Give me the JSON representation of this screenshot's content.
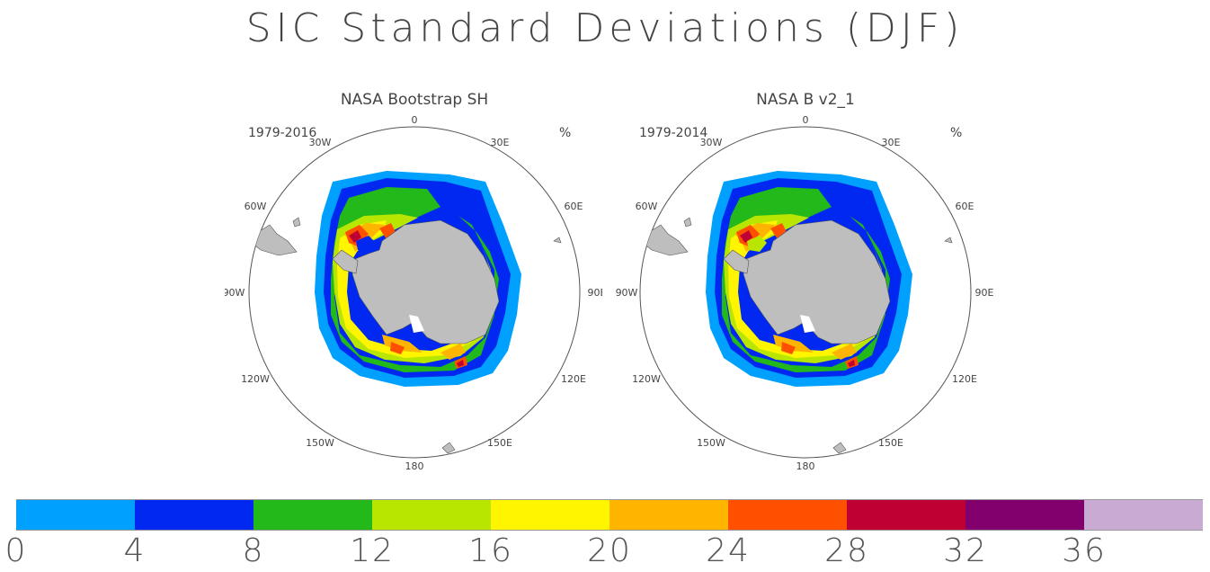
{
  "title": "SIC Standard Deviations (DJF)",
  "colors": {
    "land": "#bebebe",
    "coast_outline": "#555555",
    "ocean": "#ffffff",
    "scale": [
      "#00a0ff",
      "#0028f0",
      "#23b91b",
      "#b9e600",
      "#fff500",
      "#ffb400",
      "#ff5000",
      "#be0032",
      "#82006e",
      "#c8aad2"
    ]
  },
  "unit": "%",
  "panels": [
    {
      "title": "NASA Bootstrap SH",
      "period": "1979-2016",
      "longitude_labels": [
        "0",
        "30E",
        "60E",
        "90E",
        "120E",
        "150E",
        "180",
        "150W",
        "120W",
        "90W",
        "60W",
        "30W"
      ]
    },
    {
      "title": "NASA B v2_1",
      "period": "1979-2014",
      "longitude_labels": [
        "0",
        "30E",
        "60E",
        "90E",
        "120E",
        "150E",
        "180",
        "150W",
        "120W",
        "90W",
        "60W",
        "30W"
      ]
    }
  ],
  "colorbar": {
    "tick_labels": [
      "0",
      "4",
      "8",
      "12",
      "16",
      "20",
      "24",
      "28",
      "32",
      "36"
    ]
  },
  "icons": {
    "antarctica": "antarctica-landmass-icon",
    "south_america": "south-america-tip-icon"
  }
}
